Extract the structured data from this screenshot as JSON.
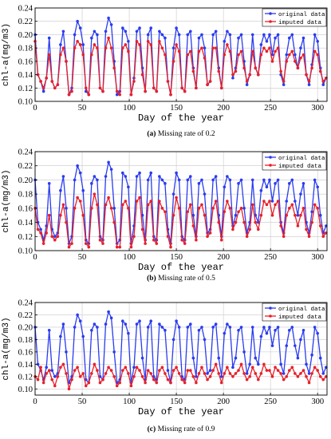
{
  "chart_data": [
    {
      "type": "line",
      "caption_label": "(a)",
      "caption_text": "Missing rate of 0.2",
      "ylabel": "chl-a(mg/m3)",
      "xlabel": "Day of the year",
      "xlim": [
        0,
        310
      ],
      "ylim": [
        0.1,
        0.24
      ],
      "xticks": [
        "0",
        "50",
        "100",
        "150",
        "200",
        "250",
        "300"
      ],
      "yticks": [
        "0.10",
        "0.12",
        "0.14",
        "0.16",
        "0.18",
        "0.20",
        "0.22",
        "0.24"
      ],
      "grid": true,
      "legend_position": "top-right",
      "series": [
        {
          "name": "original data",
          "color": "#2a3cf0",
          "key": "original"
        },
        {
          "name": "imputed data",
          "color": "#e8202a",
          "key": "imputed"
        }
      ]
    },
    {
      "type": "line",
      "caption_label": "(b)",
      "caption_text": "Missing rate of 0.5",
      "ylabel": "chl-a(mg/m3)",
      "xlabel": "Day of the year",
      "xlim": [
        0,
        310
      ],
      "ylim": [
        0.1,
        0.24
      ],
      "xticks": [
        "0",
        "50",
        "100",
        "150",
        "200",
        "250",
        "300"
      ],
      "yticks": [
        "0.10",
        "0.12",
        "0.14",
        "0.16",
        "0.18",
        "0.20",
        "0.22",
        "0.24"
      ],
      "grid": true,
      "legend_position": "top-right",
      "series": [
        {
          "name": "original data",
          "color": "#2a3cf0",
          "key": "original"
        },
        {
          "name": "imputed data",
          "color": "#e8202a",
          "key": "imputed"
        }
      ]
    },
    {
      "type": "line",
      "caption_label": "(c)",
      "caption_text": "Missing rate of 0.9",
      "ylabel": "chl-a(mg/m3)",
      "xlabel": "Day of the year",
      "xlim": [
        0,
        310
      ],
      "ylim": [
        0.09,
        0.24
      ],
      "xticks": [
        "0",
        "50",
        "100",
        "150",
        "200",
        "250",
        "300"
      ],
      "yticks": [
        "0.10",
        "0.12",
        "0.14",
        "0.16",
        "0.18",
        "0.20",
        "0.22",
        "0.24"
      ],
      "grid": true,
      "legend_position": "top-right",
      "series": [
        {
          "name": "original data",
          "color": "#2a3cf0",
          "key": "original"
        },
        {
          "name": "imputed data",
          "color": "#e8202a",
          "key": "imputed"
        }
      ]
    }
  ],
  "original_series": {
    "x": [
      0,
      3,
      6,
      9,
      12,
      15,
      18,
      21,
      24,
      27,
      30,
      33,
      36,
      39,
      42,
      45,
      48,
      51,
      54,
      57,
      60,
      63,
      66,
      69,
      72,
      75,
      78,
      81,
      84,
      87,
      90,
      93,
      96,
      99,
      102,
      105,
      108,
      111,
      114,
      117,
      120,
      123,
      126,
      129,
      132,
      135,
      138,
      141,
      144,
      147,
      150,
      153,
      156,
      159,
      162,
      165,
      168,
      171,
      174,
      177,
      180,
      183,
      186,
      189,
      192,
      195,
      198,
      201,
      204,
      207,
      210,
      213,
      216,
      219,
      222,
      225,
      228,
      231,
      234,
      237,
      240,
      243,
      246,
      249,
      252,
      255,
      258,
      261,
      264,
      267,
      270,
      273,
      276,
      279,
      282,
      285,
      288,
      291,
      294,
      297,
      300,
      303,
      306,
      309
    ],
    "values": [
      0.2,
      0.14,
      0.13,
      0.115,
      0.135,
      0.195,
      0.13,
      0.12,
      0.125,
      0.185,
      0.205,
      0.16,
      0.11,
      0.12,
      0.2,
      0.22,
      0.21,
      0.185,
      0.115,
      0.11,
      0.195,
      0.205,
      0.2,
      0.12,
      0.115,
      0.205,
      0.225,
      0.215,
      0.16,
      0.11,
      0.115,
      0.21,
      0.205,
      0.19,
      0.11,
      0.135,
      0.205,
      0.21,
      0.15,
      0.115,
      0.2,
      0.21,
      0.12,
      0.115,
      0.205,
      0.2,
      0.195,
      0.13,
      0.11,
      0.18,
      0.21,
      0.2,
      0.12,
      0.115,
      0.2,
      0.205,
      0.15,
      0.12,
      0.195,
      0.2,
      0.18,
      0.125,
      0.13,
      0.2,
      0.205,
      0.15,
      0.12,
      0.19,
      0.205,
      0.2,
      0.135,
      0.15,
      0.195,
      0.2,
      0.16,
      0.125,
      0.14,
      0.2,
      0.15,
      0.14,
      0.185,
      0.2,
      0.19,
      0.2,
      0.17,
      0.195,
      0.2,
      0.14,
      0.125,
      0.17,
      0.195,
      0.2,
      0.17,
      0.15,
      0.18,
      0.195,
      0.14,
      0.125,
      0.155,
      0.2,
      0.19,
      0.15,
      0.125,
      0.135
    ]
  },
  "imputed_series": {
    "a": [
      0.19,
      0.14,
      0.13,
      0.12,
      0.135,
      0.17,
      0.13,
      0.12,
      0.125,
      0.17,
      0.18,
      0.16,
      0.11,
      0.115,
      0.18,
      0.19,
      0.185,
      0.17,
      0.12,
      0.11,
      0.17,
      0.185,
      0.18,
      0.12,
      0.115,
      0.18,
      0.195,
      0.18,
      0.15,
      0.115,
      0.11,
      0.18,
      0.185,
      0.175,
      0.11,
      0.13,
      0.19,
      0.185,
      0.14,
      0.115,
      0.19,
      0.185,
      0.12,
      0.115,
      0.19,
      0.18,
      0.17,
      0.13,
      0.11,
      0.16,
      0.185,
      0.175,
      0.12,
      0.115,
      0.17,
      0.175,
      0.145,
      0.12,
      0.175,
      0.18,
      0.165,
      0.125,
      0.13,
      0.18,
      0.18,
      0.145,
      0.12,
      0.17,
      0.185,
      0.175,
      0.14,
      0.145,
      0.17,
      0.175,
      0.15,
      0.13,
      0.14,
      0.175,
      0.15,
      0.14,
      0.17,
      0.18,
      0.175,
      0.18,
      0.16,
      0.175,
      0.18,
      0.145,
      0.13,
      0.16,
      0.17,
      0.175,
      0.16,
      0.15,
      0.165,
      0.17,
      0.14,
      0.13,
      0.15,
      0.175,
      0.17,
      0.145,
      0.13,
      0.135
    ],
    "b": [
      0.16,
      0.13,
      0.125,
      0.11,
      0.125,
      0.15,
      0.12,
      0.115,
      0.12,
      0.15,
      0.165,
      0.14,
      0.105,
      0.11,
      0.16,
      0.175,
      0.17,
      0.15,
      0.11,
      0.105,
      0.16,
      0.18,
      0.165,
      0.115,
      0.11,
      0.165,
      0.175,
      0.16,
      0.14,
      0.105,
      0.105,
      0.165,
      0.17,
      0.16,
      0.105,
      0.12,
      0.17,
      0.175,
      0.13,
      0.11,
      0.165,
      0.17,
      0.115,
      0.11,
      0.17,
      0.16,
      0.155,
      0.12,
      0.105,
      0.15,
      0.175,
      0.16,
      0.115,
      0.11,
      0.155,
      0.165,
      0.135,
      0.115,
      0.16,
      0.165,
      0.15,
      0.12,
      0.125,
      0.16,
      0.17,
      0.14,
      0.115,
      0.155,
      0.17,
      0.16,
      0.13,
      0.14,
      0.155,
      0.16,
      0.14,
      0.12,
      0.13,
      0.165,
      0.14,
      0.13,
      0.15,
      0.17,
      0.165,
      0.17,
      0.15,
      0.165,
      0.17,
      0.135,
      0.12,
      0.15,
      0.16,
      0.165,
      0.15,
      0.135,
      0.15,
      0.16,
      0.13,
      0.12,
      0.14,
      0.165,
      0.16,
      0.135,
      0.12,
      0.125
    ],
    "c": [
      0.12,
      0.115,
      0.135,
      0.11,
      0.125,
      0.13,
      0.115,
      0.105,
      0.12,
      0.135,
      0.14,
      0.125,
      0.1,
      0.115,
      0.13,
      0.135,
      0.12,
      0.125,
      0.105,
      0.11,
      0.125,
      0.14,
      0.13,
      0.11,
      0.115,
      0.125,
      0.135,
      0.13,
      0.12,
      0.105,
      0.11,
      0.13,
      0.135,
      0.125,
      0.105,
      0.12,
      0.135,
      0.13,
      0.12,
      0.11,
      0.13,
      0.125,
      0.115,
      0.11,
      0.13,
      0.135,
      0.125,
      0.115,
      0.11,
      0.13,
      0.135,
      0.125,
      0.115,
      0.11,
      0.13,
      0.13,
      0.12,
      0.11,
      0.125,
      0.135,
      0.125,
      0.115,
      0.12,
      0.13,
      0.14,
      0.125,
      0.11,
      0.125,
      0.135,
      0.125,
      0.12,
      0.125,
      0.13,
      0.14,
      0.125,
      0.115,
      0.12,
      0.135,
      0.125,
      0.115,
      0.125,
      0.14,
      0.13,
      0.13,
      0.12,
      0.135,
      0.13,
      0.125,
      0.115,
      0.12,
      0.13,
      0.135,
      0.125,
      0.12,
      0.125,
      0.13,
      0.12,
      0.11,
      0.125,
      0.135,
      0.13,
      0.12,
      0.115,
      0.12
    ]
  }
}
